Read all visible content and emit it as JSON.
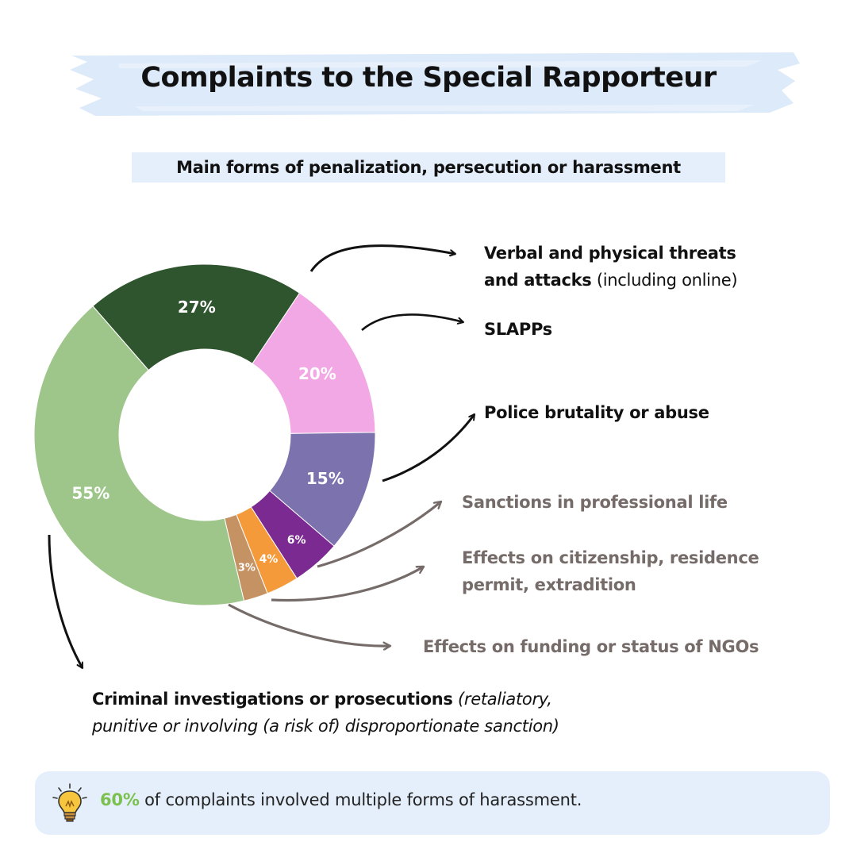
{
  "title": "Complaints to the Special Rapporteur",
  "subtitle": "Main forms of penalization, persecution or harassment",
  "chart_data": {
    "type": "pie",
    "title": "Main forms of penalization, persecution or harassment",
    "slices": [
      {
        "label": "Verbal and physical threats and attacks (including online)",
        "value": 27,
        "display": "27%",
        "color": "#2f552e"
      },
      {
        "label": "SLAPPs",
        "value": 20,
        "display": "20%",
        "color": "#f3a8e6"
      },
      {
        "label": "Police brutality or abuse",
        "value": 15,
        "display": "15%",
        "color": "#7b72ae"
      },
      {
        "label": "Sanctions in professional life",
        "value": 6,
        "display": "6%",
        "color": "#7a2a90"
      },
      {
        "label": "Effects on citizenship, residence permit, extradition",
        "value": 4,
        "display": "4%",
        "color": "#f59a3a"
      },
      {
        "label": "Effects on funding or status of NGOs",
        "value": 3,
        "display": "3%",
        "color": "#c59263"
      },
      {
        "label": "Criminal investigations or prosecutions (retaliatory, punitive or involving (a risk of) disproportionate sanction)",
        "value": 55,
        "display": "55%",
        "color": "#9ec68a"
      }
    ]
  },
  "labels": {
    "threats_bold_1": "Verbal and physical threats",
    "threats_bold_2": "and attacks",
    "threats_light": " (including online)",
    "slapps": "SLAPPs",
    "police": "Police brutality or abuse",
    "sanctions": "Sanctions in professional life",
    "citizenship_1": "Effects on citizenship, residence",
    "citizenship_2": "permit, extradition",
    "funding": "Effects on funding or status of NGOs",
    "criminal_bold": "Criminal investigations or prosecutions",
    "criminal_ital_1": " (retaliatory,",
    "criminal_ital_2": "punitive or involving (a risk of) disproportionate sanction)"
  },
  "tip": {
    "highlight": "60%",
    "text": " of complaints involved multiple forms of harassment.",
    "icon": "lightbulb-icon",
    "highlight_color": "#7cc04f"
  }
}
